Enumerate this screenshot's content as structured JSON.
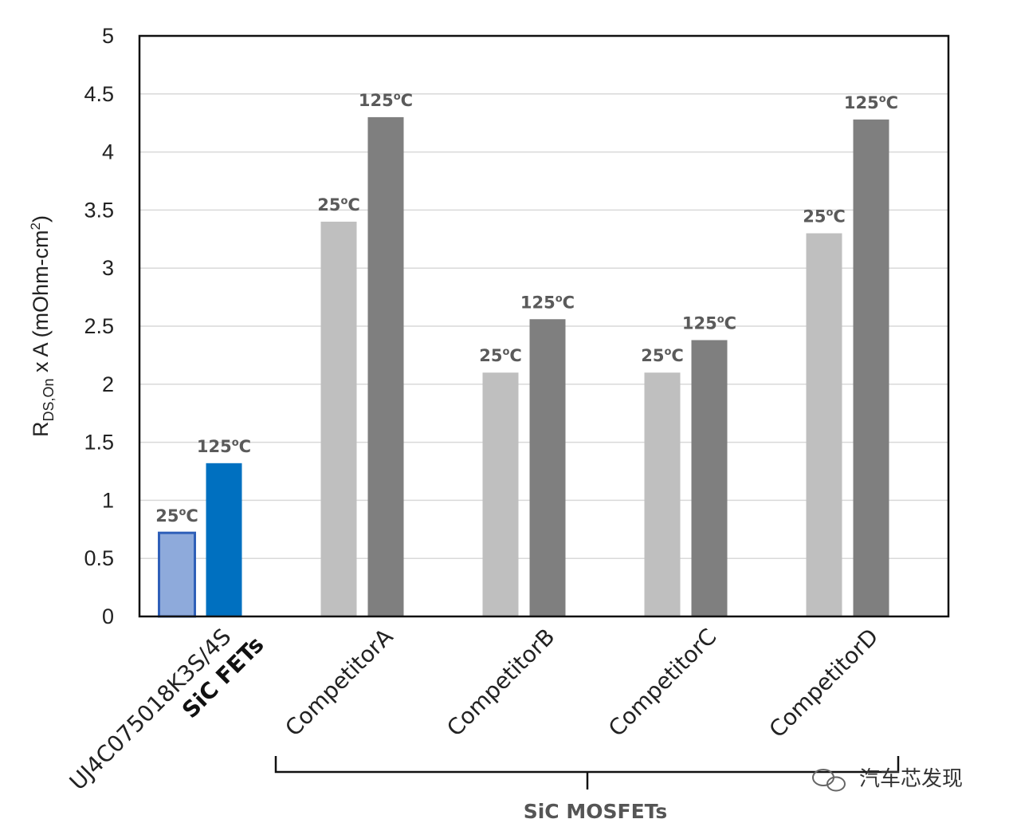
{
  "chart_data": {
    "type": "bar",
    "ylabel": {
      "main": "R",
      "subscript": "DS,On",
      "rest": " x A (mOhm-cm",
      "superscript": "2",
      "end": ")"
    },
    "ylim": [
      0,
      5
    ],
    "yticks": [
      "0",
      "0.5",
      "1",
      "1.5",
      "2",
      "2.5",
      "3",
      "3.5",
      "4",
      "4.5",
      "5"
    ],
    "grid": true,
    "categories": [
      {
        "lines": [
          "UJ4C075018K3S/4S",
          "SiC FETs"
        ],
        "bold_line": 1
      },
      {
        "lines": [
          "CompetitorA"
        ]
      },
      {
        "lines": [
          "CompetitorB"
        ]
      },
      {
        "lines": [
          "CompetitorC"
        ]
      },
      {
        "lines": [
          "CompetitorD"
        ]
      }
    ],
    "series": [
      {
        "name": "25°C",
        "values": [
          0.72,
          3.4,
          2.1,
          2.1,
          3.3
        ]
      },
      {
        "name": "125°C",
        "values": [
          1.32,
          4.3,
          2.56,
          2.38,
          4.28
        ]
      }
    ],
    "bar_labels": {
      "low": {
        "num": "25",
        "deg": "o",
        "unit": "C"
      },
      "high": {
        "num": "125",
        "deg": "o",
        "unit": "C"
      }
    },
    "colors": {
      "highlight_25": "#8eaadb",
      "highlight_25_border": "#2e5fb8",
      "highlight_125": "#0070c0",
      "competitor_25": "#bfbfbf",
      "competitor_125": "#7f7f7f"
    },
    "group_bracket_label": "SiC MOSFETs"
  },
  "watermark": "汽车芯发现"
}
